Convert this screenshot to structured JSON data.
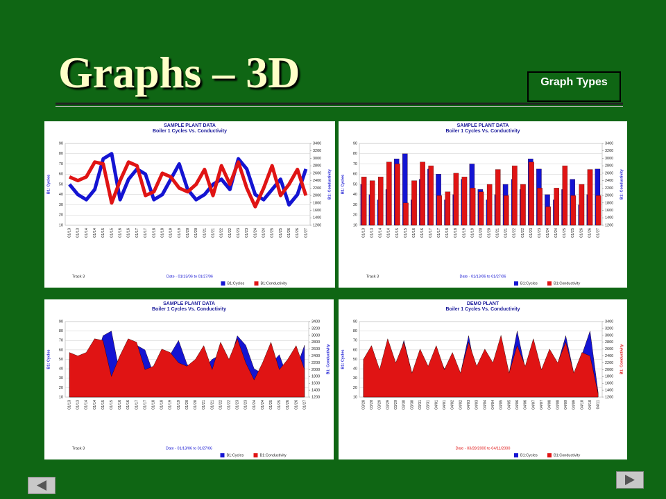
{
  "title": "Graphs – 3D",
  "button": "Graph Types",
  "chart_data": [
    {
      "type": "line",
      "title": "SAMPLE PLANT DATA",
      "subtitle": "Boiler 1 Cycles Vs. Conductivity",
      "ylabel": "B1: Cycles",
      "y2label": "B1: Conductivity",
      "note": "Track 3",
      "xlabel": "Date - 01/13/06 to 01/27/06",
      "categories": [
        "01/13",
        "01/13",
        "01/14",
        "01/14",
        "01/15",
        "01/15",
        "01/16",
        "01/16",
        "01/17",
        "01/17",
        "01/18",
        "01/18",
        "01/19",
        "01/19",
        "01/20",
        "01/20",
        "01/21",
        "01/21",
        "01/22",
        "01/22",
        "01/23",
        "01/23",
        "01/24",
        "01/24",
        "01/25",
        "01/25",
        "01/26",
        "01/26",
        "01/27"
      ],
      "ylim": [
        10,
        90
      ],
      "yticks": [
        10,
        20,
        30,
        40,
        50,
        60,
        70,
        80,
        90
      ],
      "y2lim": [
        1200,
        3400
      ],
      "y2ticks": [
        1200,
        1400,
        1600,
        1800,
        2000,
        2200,
        2400,
        2600,
        2800,
        3000,
        3200,
        3400
      ],
      "series": [
        {
          "name": "B1:Cycles",
          "color": "#1414d2",
          "values": [
            50,
            40,
            35,
            45,
            75,
            80,
            35,
            55,
            65,
            60,
            35,
            40,
            55,
            70,
            45,
            35,
            40,
            50,
            55,
            45,
            75,
            65,
            40,
            35,
            45,
            55,
            30,
            40,
            65
          ]
        },
        {
          "name": "B1:Conductivity",
          "color": "#e01414",
          "axis": "y2",
          "values": [
            2500,
            2400,
            2500,
            2900,
            2850,
            1800,
            2400,
            2900,
            2800,
            2000,
            2100,
            2600,
            2500,
            2200,
            2100,
            2300,
            2700,
            2000,
            2800,
            2300,
            2900,
            2200,
            1700,
            2200,
            2800,
            2000,
            2300,
            2700,
            2000
          ]
        }
      ]
    },
    {
      "type": "bar",
      "title": "SAMPLE PLANT DATA",
      "subtitle": "Boiler 1 Cycles Vs. Conductivity",
      "ylabel": "B1: Cycles",
      "y2label": "B1: Conductivity",
      "note": "Track 3",
      "xlabel": "Date - 01/13/06 to 01/27/06",
      "categories": [
        "01/13",
        "01/13",
        "01/14",
        "01/14",
        "01/15",
        "01/15",
        "01/16",
        "01/16",
        "01/17",
        "01/17",
        "01/18",
        "01/18",
        "01/19",
        "01/19",
        "01/20",
        "01/20",
        "01/21",
        "01/21",
        "01/22",
        "01/22",
        "01/23",
        "01/23",
        "01/24",
        "01/24",
        "01/25",
        "01/25",
        "01/26",
        "01/26",
        "01/27"
      ],
      "ylim": [
        10,
        90
      ],
      "yticks": [
        10,
        20,
        30,
        40,
        50,
        60,
        70,
        80,
        90
      ],
      "y2lim": [
        1200,
        3400
      ],
      "y2ticks": [
        1200,
        1400,
        1600,
        1800,
        2000,
        2200,
        2400,
        2600,
        2800,
        3000,
        3200,
        3400
      ],
      "series": [
        {
          "name": "B1:Cycles",
          "color": "#1414d2",
          "values": [
            50,
            40,
            35,
            45,
            75,
            80,
            35,
            55,
            65,
            60,
            35,
            40,
            55,
            70,
            45,
            35,
            40,
            50,
            55,
            45,
            75,
            65,
            40,
            35,
            45,
            55,
            30,
            40,
            65
          ]
        },
        {
          "name": "B1:Conductivity",
          "color": "#e01414",
          "axis": "y2",
          "values": [
            2500,
            2400,
            2500,
            2900,
            2850,
            1800,
            2400,
            2900,
            2800,
            2000,
            2100,
            2600,
            2500,
            2200,
            2100,
            2300,
            2700,
            2000,
            2800,
            2300,
            2900,
            2200,
            1700,
            2200,
            2800,
            2000,
            2300,
            2700,
            2000
          ]
        }
      ]
    },
    {
      "type": "area",
      "title": "SAMPLE PLANT DATA",
      "subtitle": "Boiler 1 Cycles Vs. Conductivity",
      "ylabel": "B1: Cycles",
      "y2label": "B1: Conductivity",
      "note": "Track 3",
      "xlabel": "Date - 01/13/06 to 01/27/06",
      "categories": [
        "01/13",
        "01/13",
        "01/14",
        "01/14",
        "01/15",
        "01/15",
        "01/16",
        "01/16",
        "01/17",
        "01/17",
        "01/18",
        "01/18",
        "01/19",
        "01/19",
        "01/20",
        "01/20",
        "01/21",
        "01/21",
        "01/22",
        "01/22",
        "01/23",
        "01/23",
        "01/24",
        "01/24",
        "01/25",
        "01/25",
        "01/26",
        "01/26",
        "01/27"
      ],
      "ylim": [
        10,
        90
      ],
      "yticks": [
        10,
        20,
        30,
        40,
        50,
        60,
        70,
        80,
        90
      ],
      "y2lim": [
        1200,
        3400
      ],
      "y2ticks": [
        1200,
        1400,
        1600,
        1800,
        2000,
        2200,
        2400,
        2600,
        2800,
        3000,
        3200,
        3400
      ],
      "series": [
        {
          "name": "B1:Cycles",
          "color": "#1414d2",
          "values": [
            50,
            40,
            35,
            45,
            75,
            80,
            35,
            55,
            65,
            60,
            35,
            40,
            55,
            70,
            45,
            35,
            40,
            50,
            55,
            45,
            75,
            65,
            40,
            35,
            45,
            55,
            30,
            40,
            65
          ]
        },
        {
          "name": "B1:Conductivity",
          "color": "#e01414",
          "axis": "y2",
          "values": [
            2500,
            2400,
            2500,
            2900,
            2850,
            1800,
            2400,
            2900,
            2800,
            2000,
            2100,
            2600,
            2500,
            2200,
            2100,
            2300,
            2700,
            2000,
            2800,
            2300,
            2900,
            2200,
            1700,
            2200,
            2800,
            2000,
            2300,
            2700,
            2000
          ]
        }
      ]
    },
    {
      "type": "area",
      "title": "DEMO PLANT",
      "subtitle": "Boiler 1 Cycles Vs. Conductivity",
      "ylabel": "B1: Cycles",
      "y2label": "B1: Conductivity",
      "xlabel": "Date - 03/28/2000 to 04/11/2000",
      "categories": [
        "03/28",
        "03/28",
        "03/29",
        "03/29",
        "03/29",
        "03/30",
        "03/30",
        "03/31",
        "03/31",
        "04/01",
        "04/01",
        "04/02",
        "04/02",
        "04/03",
        "04/03",
        "04/04",
        "04/04",
        "04/05",
        "04/05",
        "04/06",
        "04/06",
        "04/07",
        "04/07",
        "04/08",
        "04/08",
        "04/09",
        "04/09",
        "04/10",
        "04/10",
        "04/11"
      ],
      "ylim": [
        10,
        90
      ],
      "yticks": [
        10,
        20,
        30,
        40,
        50,
        60,
        70,
        80,
        90
      ],
      "y2lim": [
        1200,
        3400
      ],
      "y2ticks": [
        1200,
        1400,
        1600,
        1800,
        2000,
        2200,
        2400,
        2600,
        2800,
        3000,
        3200,
        3400
      ],
      "series": [
        {
          "name": "B1:Cycles",
          "color": "#1414d2",
          "values": [
            45,
            60,
            30,
            65,
            40,
            70,
            35,
            55,
            30,
            60,
            40,
            50,
            35,
            75,
            30,
            55,
            45,
            65,
            35,
            80,
            40,
            70,
            30,
            60,
            45,
            75,
            35,
            55,
            80,
            15
          ]
        },
        {
          "name": "B1:Conductivity",
          "color": "#e01414",
          "axis": "y2",
          "values": [
            2300,
            2700,
            2000,
            2900,
            2200,
            2800,
            1900,
            2600,
            2100,
            2700,
            2000,
            2500,
            1900,
            2800,
            2100,
            2600,
            2200,
            3000,
            1900,
            2700,
            2100,
            2900,
            2000,
            2600,
            2200,
            2800,
            1900,
            2500,
            2400,
            1300
          ]
        }
      ]
    }
  ]
}
